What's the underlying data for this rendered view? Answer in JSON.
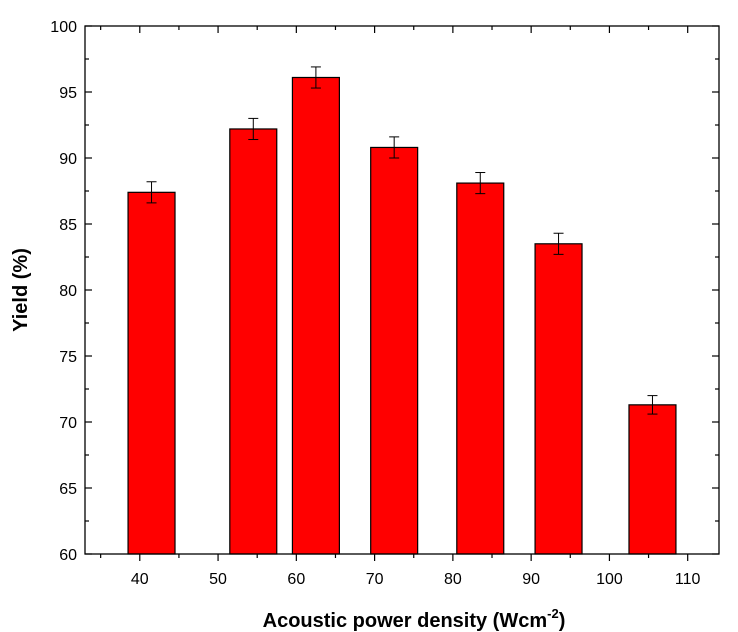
{
  "chart_data": {
    "type": "bar",
    "title": "",
    "xlabel": "Acoustic power density (Wcm",
    "xlabel_sup": "-2",
    "xlabel_suffix": ")",
    "ylabel": "Yield (%)",
    "xlim": [
      33,
      114
    ],
    "ylim": [
      60,
      100
    ],
    "x_ticks": [
      40,
      50,
      60,
      70,
      80,
      90,
      100,
      110
    ],
    "y_ticks": [
      60,
      65,
      70,
      75,
      80,
      85,
      90,
      95,
      100
    ],
    "grid": false,
    "legend": "none",
    "bar_color": "#ff0000",
    "bar_width": 6,
    "bars": [
      {
        "x": 41.5,
        "value": 87.4,
        "error": 0.8
      },
      {
        "x": 54.5,
        "value": 92.2,
        "error": 0.8
      },
      {
        "x": 62.5,
        "value": 96.1,
        "error": 0.8
      },
      {
        "x": 72.5,
        "value": 90.8,
        "error": 0.8
      },
      {
        "x": 83.5,
        "value": 88.1,
        "error": 0.8
      },
      {
        "x": 93.5,
        "value": 83.5,
        "error": 0.8
      },
      {
        "x": 105.5,
        "value": 71.3,
        "error": 0.7
      }
    ]
  }
}
